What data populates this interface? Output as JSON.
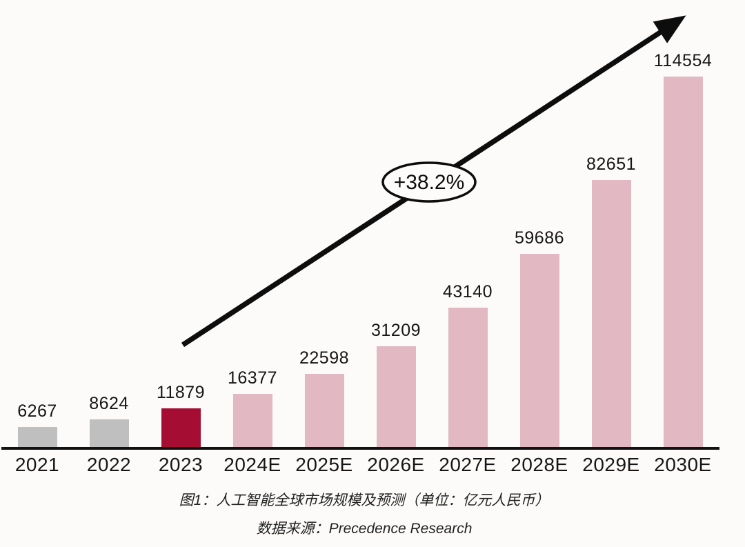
{
  "chart_data": {
    "type": "bar",
    "categories": [
      "2021",
      "2022",
      "2023",
      "2024E",
      "2025E",
      "2026E",
      "2027E",
      "2028E",
      "2029E",
      "2030E"
    ],
    "values": [
      6267,
      8624,
      11879,
      16377,
      22598,
      31209,
      43140,
      59686,
      82651,
      114554
    ],
    "bar_roles": [
      "actual-gray",
      "actual-gray",
      "actual-highlight",
      "forecast",
      "forecast",
      "forecast",
      "forecast",
      "forecast",
      "forecast",
      "forecast"
    ],
    "palette": {
      "actual-gray": "#c0bfbf",
      "actual-highlight": "#a50d33",
      "forecast": "#e2b8c3",
      "axis": "#121212",
      "arrow": "#0d0d0d"
    },
    "ylim": [
      0,
      120000
    ],
    "grid": false,
    "legend": "none",
    "xlabel": "",
    "ylabel": "",
    "annotation": {
      "growth_label": "+38.2%"
    },
    "title": "图1：人工智能全球市场规模及预测（单位：亿元人民币）",
    "source": "数据来源：Precedence Research"
  }
}
